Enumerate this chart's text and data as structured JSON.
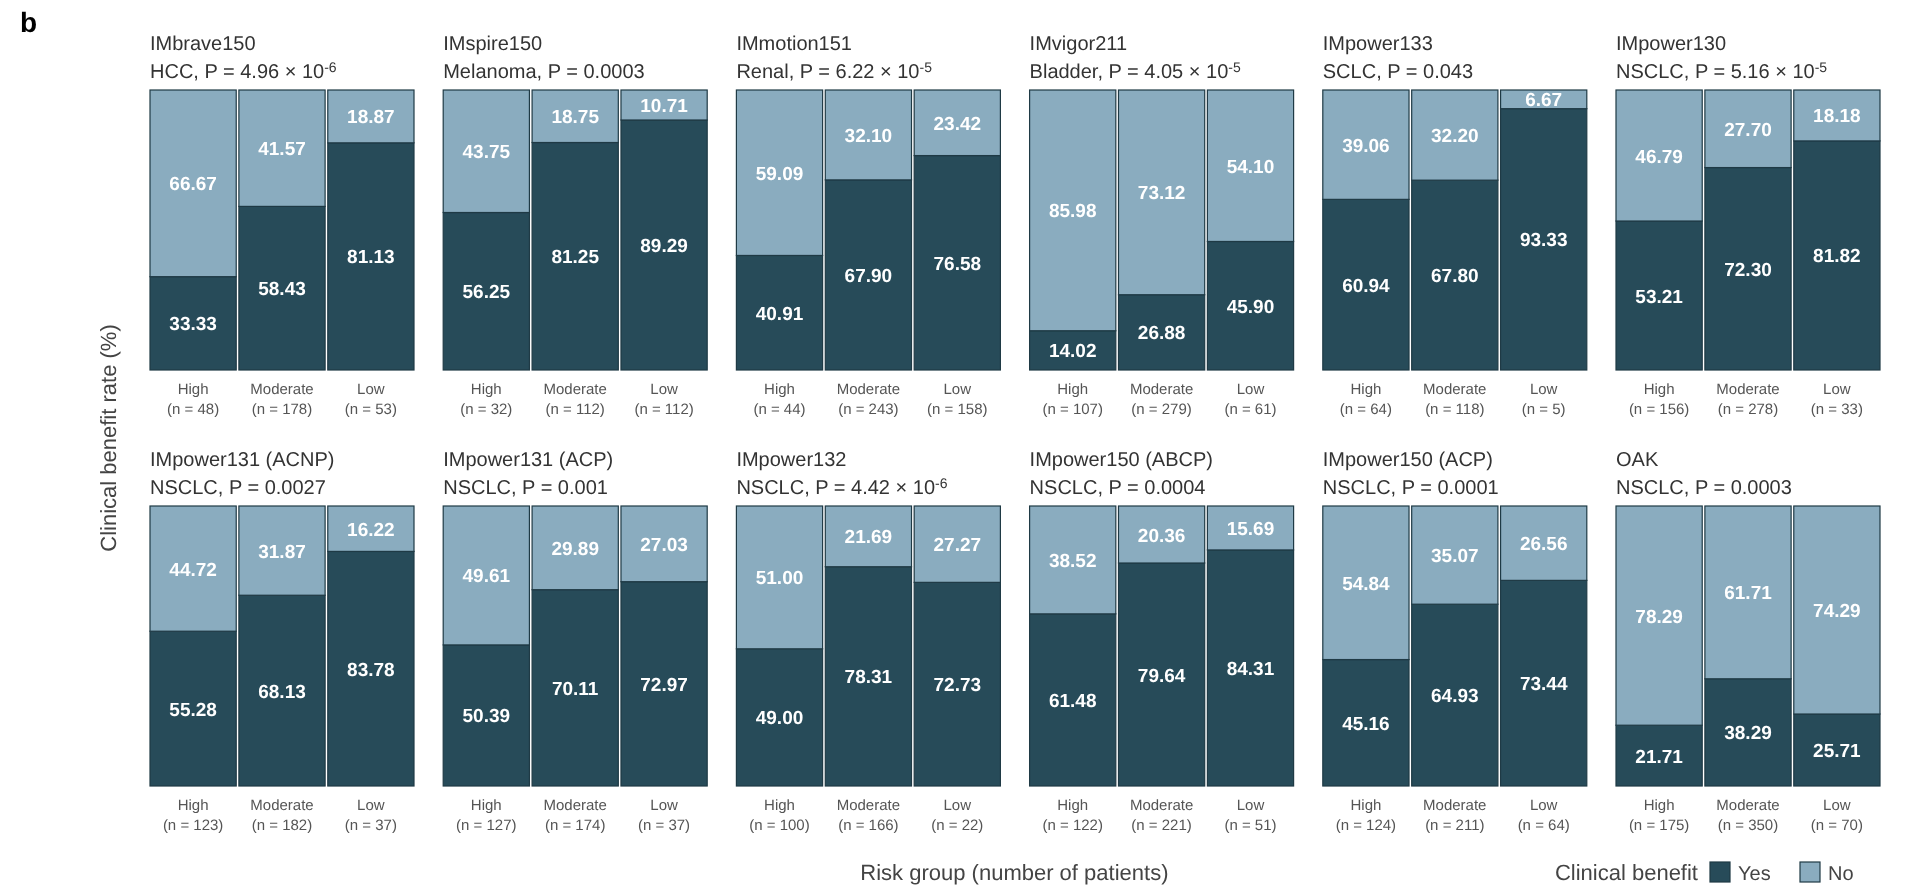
{
  "chart_data": [
    {
      "type": "bar",
      "stacked": true,
      "title": "IMbrave150",
      "subtitle": "HCC, P = 4.96 × 10$^{-6}$",
      "ylabel": "Clinical benefit rate (%)",
      "annotations": [
        "b"
      ],
      "categories": [
        "High (n = 48)",
        "Moderate (n = 178)",
        "Low (n = 53)"
      ],
      "ylim": [
        0,
        100
      ],
      "tick_labels": "x",
      "data_labels": true,
      "series": [
        {
          "color": "#274b59",
          "values": [
            33.33,
            58.43,
            81.13
          ]
        },
        {
          "color": "#8aacbf",
          "values": [
            66.67,
            41.57,
            18.87
          ]
        }
      ]
    },
    {
      "type": "bar",
      "stacked": true,
      "title": "IMspire150",
      "subtitle": "Melanoma, P = 0.0003",
      "categories": [
        "High (n = 32)",
        "Moderate (n = 112)",
        "Low (n = 112)"
      ],
      "ylim": [
        0,
        100
      ],
      "tick_labels": "x",
      "data_labels": true,
      "series": [
        {
          "color": "#274b59",
          "values": [
            56.25,
            81.25,
            89.29
          ]
        },
        {
          "color": "#8aacbf",
          "values": [
            43.75,
            18.75,
            10.71
          ]
        }
      ]
    },
    {
      "type": "bar",
      "stacked": true,
      "title": "IMmotion151",
      "subtitle": "Renal, P = 6.22 × 10$^{-5}$",
      "categories": [
        "High (n = 44)",
        "Moderate (n = 243)",
        "Low (n = 158)"
      ],
      "ylim": [
        0,
        100
      ],
      "tick_labels": "x",
      "series": [
        {
          "color": "#274b59",
          "values": [
            40.91,
            67.9,
            76.58
          ],
          "value_labels": [
            "40.91",
            "67.90",
            "76.58"
          ]
        },
        {
          "color": "#8aacbf",
          "values": [
            59.09,
            32.1,
            23.42
          ],
          "value_labels": [
            "59.09",
            "32.10",
            "23.42"
          ]
        }
      ]
    },
    {
      "type": "bar",
      "stacked": true,
      "title": "IMvigor211",
      "subtitle": "Bladder, P = 4.05 × 10$^{-5}$",
      "categories": [
        "High (n = 107)",
        "Moderate (n = 279)",
        "Low (n = 61)"
      ],
      "ylim": [
        0,
        100
      ],
      "tick_labels": "x",
      "series": [
        {
          "color": "#274b59",
          "values": [
            14.02,
            26.88,
            45.9
          ],
          "value_labels": [
            "14.02",
            "26.88",
            "45.90"
          ]
        },
        {
          "color": "#8aacbf",
          "values": [
            85.98,
            73.12,
            54.1
          ],
          "value_labels": [
            "85.98",
            "73.12",
            "54.10"
          ]
        }
      ]
    },
    {
      "type": "bar",
      "stacked": true,
      "title": "IMpower133",
      "subtitle": "SCLC, P = 0.043",
      "categories": [
        "High (n = 64)",
        "Moderate (n = 118)",
        "Low (n = 5)"
      ],
      "ylim": [
        0,
        100
      ],
      "tick_labels": "x",
      "series": [
        {
          "color": "#274b59",
          "values": [
            60.94,
            67.8,
            93.33
          ],
          "value_labels": [
            "60.94",
            "67.80",
            "93.33"
          ]
        },
        {
          "color": "#8aacbf",
          "values": [
            39.06,
            32.2,
            6.67
          ],
          "value_labels": [
            "39.06",
            "32.20",
            "6.67"
          ]
        }
      ]
    },
    {
      "type": "bar",
      "stacked": true,
      "title": "IMpower130",
      "subtitle": "NSCLC, P = 5.16 × 10$^{-5}$",
      "categories": [
        "High (n = 156)",
        "Moderate (n = 278)",
        "Low (n = 33)"
      ],
      "ylim": [
        0,
        100
      ],
      "tick_labels": "x",
      "series": [
        {
          "color": "#274b59",
          "values": [
            53.21,
            72.3,
            81.82
          ],
          "value_labels": [
            "53.21",
            "72.30",
            "81.82"
          ]
        },
        {
          "color": "#8aacbf",
          "values": [
            46.79,
            27.7,
            18.18
          ],
          "value_labels": [
            "46.79",
            "27.70",
            "18.18"
          ]
        }
      ]
    },
    {
      "type": "bar",
      "stacked": true,
      "title": "IMpower131 (ACNP)",
      "subtitle": "NSCLC, P = 0.0027",
      "categories": [
        "High (n = 123)",
        "Moderate (n = 182)",
        "Low (n = 37)"
      ],
      "ylim": [
        0,
        100
      ],
      "tick_labels": "x",
      "data_labels": true,
      "series": [
        {
          "color": "#274b59",
          "values": [
            55.28,
            68.13,
            83.78
          ]
        },
        {
          "color": "#8aacbf",
          "values": [
            44.72,
            31.87,
            16.22
          ]
        }
      ]
    },
    {
      "type": "bar",
      "stacked": true,
      "title": "IMpower131 (ACP)",
      "subtitle": "NSCLC, P = 0.001",
      "categories": [
        "High (n = 127)",
        "Moderate (n = 174)",
        "Low (n = 37)"
      ],
      "ylim": [
        0,
        100
      ],
      "tick_labels": "x",
      "data_labels": true,
      "series": [
        {
          "color": "#274b59",
          "values": [
            50.39,
            70.11,
            72.97
          ]
        },
        {
          "color": "#8aacbf",
          "values": [
            49.61,
            29.89,
            27.03
          ]
        }
      ]
    },
    {
      "type": "bar",
      "stacked": true,
      "title": "IMpower132",
      "subtitle": "NSCLC, P = 4.42 × 10$^{-6}$",
      "xlabel": "Risk group (number of patients)",
      "categories": [
        "High (n = 100)",
        "Moderate (n = 166)",
        "Low (n = 22)"
      ],
      "ylim": [
        0,
        100
      ],
      "tick_labels": "x",
      "series": [
        {
          "color": "#274b59",
          "values": [
            49.0,
            78.31,
            72.73
          ],
          "value_labels": [
            "49.00",
            "78.31",
            "72.73"
          ]
        },
        {
          "color": "#8aacbf",
          "values": [
            51.0,
            21.69,
            27.27
          ],
          "value_labels": [
            "51.00",
            "21.69",
            "27.27"
          ]
        }
      ]
    },
    {
      "type": "bar",
      "stacked": true,
      "title": "IMpower150 (ABCP)",
      "subtitle": "NSCLC, P = 0.0004",
      "categories": [
        "High (n = 122)",
        "Moderate (n = 221)",
        "Low (n = 51)"
      ],
      "ylim": [
        0,
        100
      ],
      "tick_labels": "x",
      "data_labels": true,
      "series": [
        {
          "color": "#274b59",
          "values": [
            61.48,
            79.64,
            84.31
          ]
        },
        {
          "color": "#8aacbf",
          "values": [
            38.52,
            20.36,
            15.69
          ]
        }
      ]
    },
    {
      "type": "bar",
      "stacked": true,
      "title": "IMpower150 (ACP)",
      "subtitle": "NSCLC, P = 0.0001",
      "categories": [
        "High (n = 124)",
        "Moderate (n = 211)",
        "Low (n = 64)"
      ],
      "ylim": [
        0,
        100
      ],
      "tick_labels": "x",
      "data_labels": true,
      "series": [
        {
          "color": "#274b59",
          "values": [
            45.16,
            64.93,
            73.44
          ]
        },
        {
          "color": "#8aacbf",
          "values": [
            54.84,
            35.07,
            26.56
          ]
        }
      ]
    },
    {
      "type": "bar",
      "stacked": true,
      "title": "OAK",
      "subtitle": "NSCLC, P = 0.0003",
      "legend_title": "Clinical benefit",
      "legend": "bottom right",
      "categories": [
        "High (n = 175)",
        "Moderate (n = 350)",
        "Low (n = 70)"
      ],
      "ylim": [
        0,
        100
      ],
      "tick_labels": "x",
      "data_labels": true,
      "series": [
        {
          "name": "Yes",
          "color": "#274b59",
          "values": [
            21.71,
            38.29,
            25.71
          ]
        },
        {
          "name": "No",
          "color": "#8aacbf",
          "values": [
            78.29,
            61.71,
            74.29
          ]
        }
      ]
    }
  ]
}
